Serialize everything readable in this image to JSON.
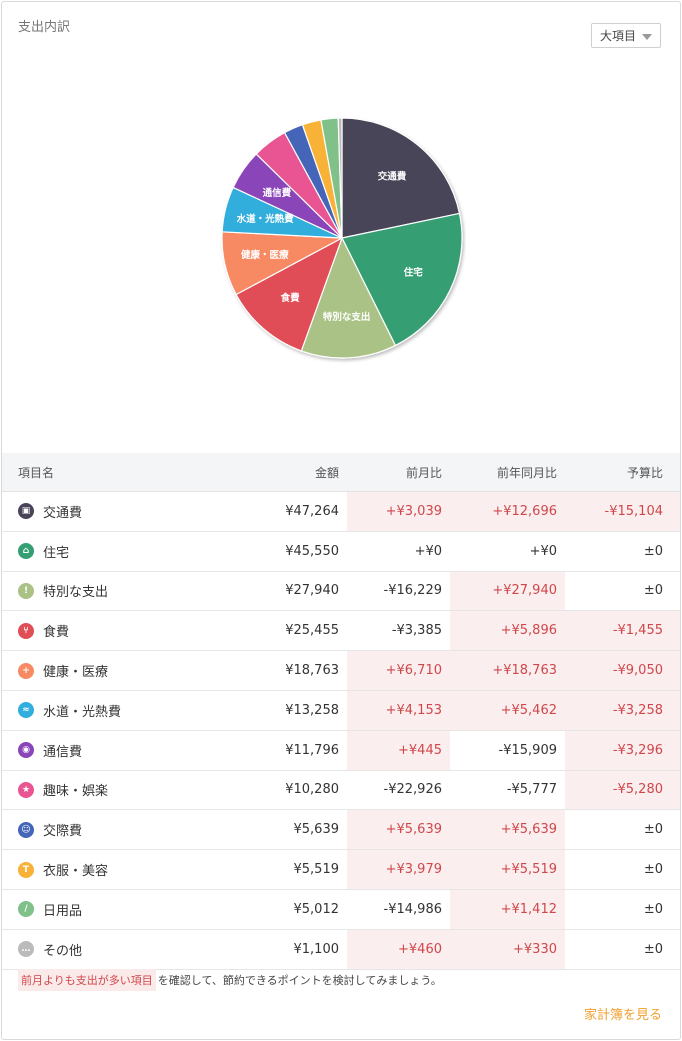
{
  "header": {
    "title": "支出内訳",
    "dropdown_label": "大項目"
  },
  "chart_data": {
    "type": "pie",
    "slices": [
      {
        "name": "交通費",
        "value": 47264,
        "color": "#4a4459",
        "label": "交通費"
      },
      {
        "name": "住宅",
        "value": 45550,
        "color": "#359e73",
        "label": "住宅"
      },
      {
        "name": "特別な支出",
        "value": 27940,
        "color": "#aac285",
        "label": "特別な支出"
      },
      {
        "name": "食費",
        "value": 25455,
        "color": "#e04e56",
        "label": "食費"
      },
      {
        "name": "健康・医療",
        "value": 18763,
        "color": "#f78a62",
        "label": "健康・医療"
      },
      {
        "name": "水道・光熱費",
        "value": 13258,
        "color": "#30aedd",
        "label": "水道・光熱費"
      },
      {
        "name": "通信費",
        "value": 11796,
        "color": "#8a45b8",
        "label": "通信費"
      },
      {
        "name": "趣味・娯楽",
        "value": 10280,
        "color": "#e85592",
        "label": ""
      },
      {
        "name": "交際費",
        "value": 5639,
        "color": "#4566b8",
        "label": ""
      },
      {
        "name": "衣服・美容",
        "value": 5519,
        "color": "#f8b237",
        "label": ""
      },
      {
        "name": "日用品",
        "value": 5012,
        "color": "#7fc189",
        "label": ""
      },
      {
        "name": "その他",
        "value": 1100,
        "color": "#bbbbbb",
        "label": ""
      }
    ]
  },
  "table": {
    "headers": [
      "項目名",
      "金額",
      "前月比",
      "前年同月比",
      "予算比"
    ],
    "rows": [
      {
        "name": "交通費",
        "icon": "train-icon",
        "color": "#4a4459",
        "glyph": "▣",
        "amount": "¥47,264",
        "mom": "+¥3,039",
        "mom_up": true,
        "yoy": "+¥12,696",
        "yoy_up": true,
        "budget": "-¥15,104",
        "budget_up": true
      },
      {
        "name": "住宅",
        "icon": "house-icon",
        "color": "#359e73",
        "glyph": "⌂",
        "amount": "¥45,550",
        "mom": "+¥0",
        "mom_up": false,
        "yoy": "+¥0",
        "yoy_up": false,
        "budget": "±0",
        "budget_up": false
      },
      {
        "name": "特別な支出",
        "icon": "exclamation-icon",
        "color": "#aac285",
        "glyph": "!",
        "amount": "¥27,940",
        "mom": "-¥16,229",
        "mom_up": false,
        "yoy": "+¥27,940",
        "yoy_up": true,
        "budget": "±0",
        "budget_up": false
      },
      {
        "name": "食費",
        "icon": "fork-knife-icon",
        "color": "#e04e56",
        "glyph": "⑂",
        "amount": "¥25,455",
        "mom": "-¥3,385",
        "mom_up": false,
        "yoy": "+¥5,896",
        "yoy_up": true,
        "budget": "-¥1,455",
        "budget_up": true
      },
      {
        "name": "健康・医療",
        "icon": "medical-cross-icon",
        "color": "#f78a62",
        "glyph": "+",
        "amount": "¥18,763",
        "mom": "+¥6,710",
        "mom_up": true,
        "yoy": "+¥18,763",
        "yoy_up": true,
        "budget": "-¥9,050",
        "budget_up": true
      },
      {
        "name": "水道・光熱費",
        "icon": "faucet-icon",
        "color": "#30aedd",
        "glyph": "≈",
        "amount": "¥13,258",
        "mom": "+¥4,153",
        "mom_up": true,
        "yoy": "+¥5,462",
        "yoy_up": true,
        "budget": "-¥3,258",
        "budget_up": true
      },
      {
        "name": "通信費",
        "icon": "antenna-icon",
        "color": "#8a45b8",
        "glyph": "◉",
        "amount": "¥11,796",
        "mom": "+¥445",
        "mom_up": true,
        "yoy": "-¥15,909",
        "yoy_up": false,
        "budget": "-¥3,296",
        "budget_up": true
      },
      {
        "name": "趣味・娯楽",
        "icon": "star-icon",
        "color": "#e85592",
        "glyph": "★",
        "amount": "¥10,280",
        "mom": "-¥22,926",
        "mom_up": false,
        "yoy": "-¥5,777",
        "yoy_up": false,
        "budget": "-¥5,280",
        "budget_up": true
      },
      {
        "name": "交際費",
        "icon": "people-icon",
        "color": "#4566b8",
        "glyph": "☺",
        "amount": "¥5,639",
        "mom": "+¥5,639",
        "mom_up": true,
        "yoy": "+¥5,639",
        "yoy_up": true,
        "budget": "±0",
        "budget_up": false
      },
      {
        "name": "衣服・美容",
        "icon": "shirt-icon",
        "color": "#f8b237",
        "glyph": "T",
        "amount": "¥5,519",
        "mom": "+¥3,979",
        "mom_up": true,
        "yoy": "+¥5,519",
        "yoy_up": true,
        "budget": "±0",
        "budget_up": false
      },
      {
        "name": "日用品",
        "icon": "brush-icon",
        "color": "#7fc189",
        "glyph": "/",
        "amount": "¥5,012",
        "mom": "-¥14,986",
        "mom_up": false,
        "yoy": "+¥1,412",
        "yoy_up": true,
        "budget": "±0",
        "budget_up": false
      },
      {
        "name": "その他",
        "icon": "dots-icon",
        "color": "#bbbbbb",
        "glyph": "…",
        "amount": "¥1,100",
        "mom": "+¥460",
        "mom_up": true,
        "yoy": "+¥330",
        "yoy_up": true,
        "budget": "±0",
        "budget_up": false
      }
    ]
  },
  "note": {
    "highlight": "前月よりも支出が多い項目",
    "text": "を確認して、節約できるポイントを検討してみましょう。"
  },
  "footer": {
    "link": "家計簿を見る"
  }
}
